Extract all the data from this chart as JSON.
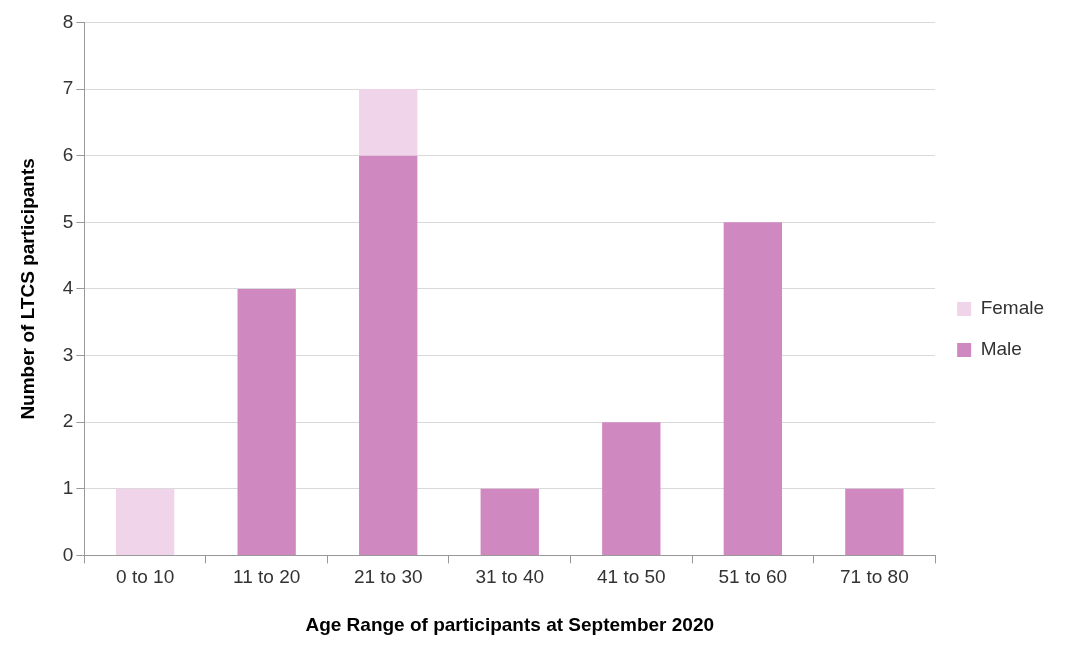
{
  "chart_data": {
    "type": "bar",
    "stacked": true,
    "xlabel": "Age Range of participants at September 2020",
    "ylabel": "Number of LTCS participants",
    "categories": [
      "0 to 10",
      "11 to 20",
      "21 to 30",
      "31 to 40",
      "41 to 50",
      "51 to 60",
      "71 to 80"
    ],
    "series": [
      {
        "name": "Male",
        "color": "#d088c0",
        "values": [
          0,
          4,
          6,
          1,
          2,
          5,
          1
        ]
      },
      {
        "name": "Female",
        "color": "#f0d4ea",
        "values": [
          1,
          0,
          1,
          0,
          0,
          0,
          0
        ]
      }
    ],
    "ylim": [
      0,
      8
    ],
    "yticks": [
      0,
      1,
      2,
      3,
      4,
      5,
      6,
      7,
      8
    ],
    "grid": "y",
    "legend": "right"
  }
}
